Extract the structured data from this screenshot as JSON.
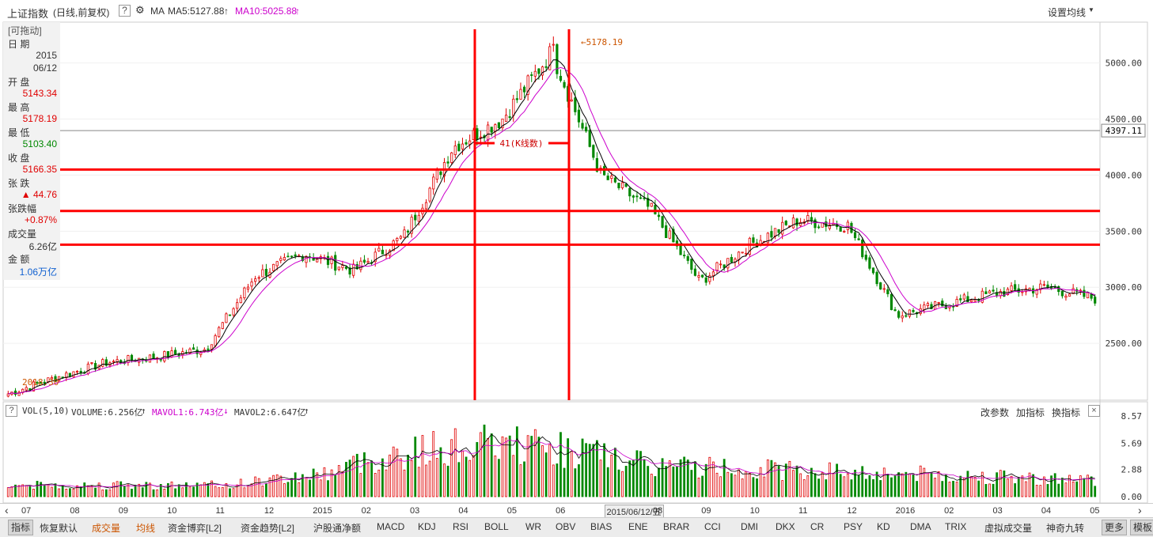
{
  "header": {
    "title": "上证指数",
    "subtitle": "(日线,前复权)",
    "help": "?",
    "ma_label": "MA",
    "ma5": "MA5:5127.88",
    "ma10": "MA10:5025.88",
    "settings": "设置均线"
  },
  "info": {
    "drag": "[可拖动]",
    "date_label": "日  期",
    "date_year": "2015",
    "date_md": "06/12",
    "open_label": "开  盘",
    "open": "5143.34",
    "high_label": "最  高",
    "high": "5178.19",
    "low_label": "最  低",
    "low": "5103.40",
    "close_label": "收  盘",
    "close": "5166.35",
    "chg_label": "张  跌",
    "chg": "▲ 44.76",
    "pct_label": "张跌幅",
    "pct": "+0.87%",
    "vol_label": "成交量",
    "vol": "6.26亿",
    "amt_label": "金  额",
    "amt": "1.06万亿"
  },
  "chart_data": {
    "type": "candlestick",
    "price_axis": [
      "5000.00",
      "4500.00",
      "4000.00",
      "3500.00",
      "3000.00",
      "2500.00"
    ],
    "price_ylim": [
      2000,
      5350
    ],
    "cursor_price": "4397.11",
    "peak_label": "5178.19",
    "low_label": "2018.30",
    "span_label": "41(K线数)",
    "horizontal_lines": [
      4050,
      3680,
      3380
    ],
    "close_path_dates": [
      "2014-07",
      "2014-08",
      "2014-09",
      "2014-10",
      "2014-11",
      "2014-12",
      "2015-01",
      "2015-02",
      "2015-03",
      "2015-04",
      "2015-05",
      "2015-06",
      "2015-07",
      "2015-08",
      "2015-09",
      "2015-10",
      "2015-11",
      "2015-12",
      "2016-01",
      "2016-02",
      "2016-03",
      "2016-04",
      "2016-05"
    ],
    "close_path": [
      2050,
      2200,
      2330,
      2380,
      2450,
      3100,
      3300,
      3150,
      3450,
      4250,
      4500,
      5100,
      4000,
      3700,
      3050,
      3380,
      3600,
      3550,
      2750,
      2850,
      2950,
      3000,
      2900
    ],
    "vol_axis": [
      "8.57",
      "5.69",
      "2.88",
      "0.00"
    ],
    "x_labels": [
      "07",
      "08",
      "09",
      "10",
      "11",
      "12",
      "2015",
      "02",
      "03",
      "04",
      "05",
      "06",
      "2015/06/12/五",
      "08",
      "09",
      "10",
      "11",
      "12",
      "2016",
      "02",
      "03",
      "04",
      "05"
    ]
  },
  "volume": {
    "help": "?",
    "label": "VOL(5,10)",
    "volume": "VOLUME:6.256亿",
    "mavol1": "MAVOL1:6.743亿",
    "mavol2": "MAVOL2:6.647亿",
    "btn_params": "改参数",
    "btn_add": "加指标",
    "btn_swap": "换指标",
    "close": "×"
  },
  "tabs": [
    "指标",
    "恢复默认",
    "成交量",
    "均线",
    "资金博弈[L2]",
    "资金趋势[L2]",
    "沪股通净额",
    "MACD",
    "KDJ",
    "RSI",
    "BOLL",
    "WR",
    "OBV",
    "BIAS",
    "ENE",
    "BRAR",
    "CCI",
    "DMI",
    "DKX",
    "CR",
    "PSY",
    "KD",
    "DMA",
    "TRIX",
    "虚拟成交量",
    "神奇九转",
    "更多",
    "模板"
  ],
  "colors": {
    "up": "#e00000",
    "down": "#008800",
    "ma5": "#000000",
    "ma10": "#cc00cc",
    "draw": "#ff0000"
  }
}
